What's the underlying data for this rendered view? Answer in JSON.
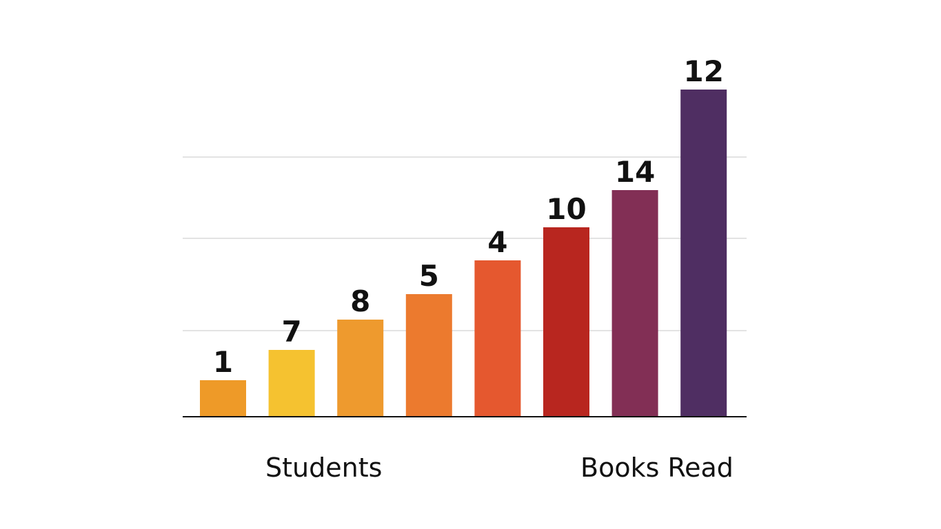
{
  "chart_data": {
    "type": "bar",
    "values": [
      1,
      7,
      8,
      5,
      4,
      10,
      14,
      12
    ],
    "colors": [
      "#EE9A28",
      "#F5C230",
      "#EE9A2E",
      "#EC7A2E",
      "#E5582F",
      "#B8261F",
      "#822F55",
      "#4F2E62"
    ],
    "grid": true,
    "legend": "none"
  },
  "captions": {
    "left": "Students",
    "right": "Books Read"
  }
}
